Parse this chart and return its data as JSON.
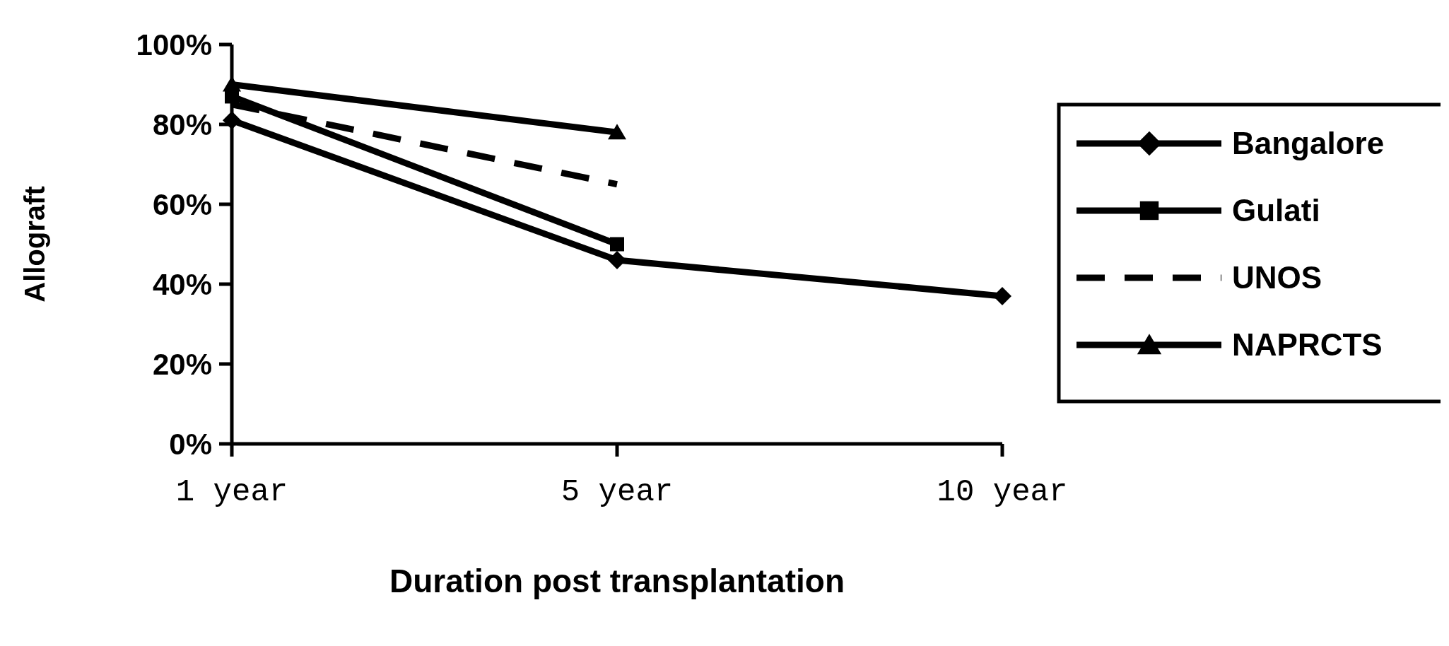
{
  "chart_data": {
    "type": "line",
    "xlabel": "Duration post transplantation",
    "ylabel": "Allograft",
    "categories": [
      "1 year",
      "5 year",
      "10 year"
    ],
    "ylim": [
      0,
      1
    ],
    "yticks": [
      {
        "value": 0,
        "label": "0%"
      },
      {
        "value": 0.2,
        "label": "20%"
      },
      {
        "value": 0.4,
        "label": "40%"
      },
      {
        "value": 0.6,
        "label": "60%"
      },
      {
        "value": 0.8,
        "label": "80%"
      },
      {
        "value": 1,
        "label": "100%"
      }
    ],
    "grid": false,
    "legend": "right",
    "series": [
      {
        "name": "Bangalore",
        "color": "#000000",
        "values": [
          0.81,
          0.46,
          0.37
        ],
        "marker": "diamond",
        "line_style": "solid"
      },
      {
        "name": "Gulati",
        "color": "#000000",
        "values": [
          0.87,
          0.5,
          null
        ],
        "marker": "square",
        "line_style": "solid"
      },
      {
        "name": "UNOS",
        "color": "#000000",
        "values": [
          0.85,
          0.65,
          null
        ],
        "marker": "none",
        "line_style": "dashed"
      },
      {
        "name": "NAPRCTS",
        "color": "#000000",
        "values": [
          0.9,
          0.78,
          null
        ],
        "marker": "triangle",
        "line_style": "solid"
      }
    ]
  }
}
